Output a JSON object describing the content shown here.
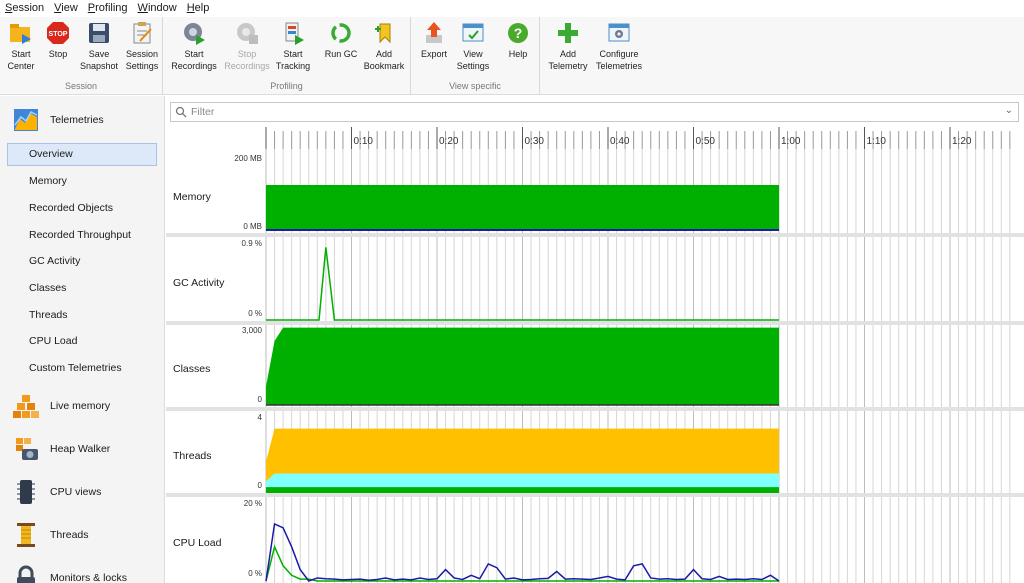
{
  "menu": [
    {
      "mnemonic": "S",
      "rest": "ession"
    },
    {
      "mnemonic": "V",
      "rest": "iew"
    },
    {
      "mnemonic": "P",
      "rest": "rofiling"
    },
    {
      "mnemonic": "W",
      "rest": "indow"
    },
    {
      "mnemonic": "H",
      "rest": "elp"
    }
  ],
  "toolbar": {
    "groups": {
      "session": "Session",
      "profiling": "Profiling",
      "view_specific": "View specific"
    },
    "buttons": {
      "start_center": [
        "Start",
        "Center"
      ],
      "stop": [
        "Stop"
      ],
      "save_snapshot": [
        "Save",
        "Snapshot"
      ],
      "session_settings": [
        "Session",
        "Settings"
      ],
      "start_recordings": [
        "Start",
        "Recordings"
      ],
      "stop_recordings": [
        "Stop",
        "Recordings"
      ],
      "start_tracking": [
        "Start",
        "Tracking"
      ],
      "run_gc": [
        "Run GC"
      ],
      "add_bookmark": [
        "Add",
        "Bookmark"
      ],
      "export": [
        "Export"
      ],
      "view_settings": [
        "View",
        "Settings"
      ],
      "help": [
        "Help"
      ],
      "add_telemetry": [
        "Add",
        "Telemetry"
      ],
      "configure_telemetries": [
        "Configure",
        "Telemetries"
      ]
    },
    "icons": {
      "start_center": "folder-play-icon",
      "stop": "stop-sign-icon",
      "save_snapshot": "floppy-disk-icon",
      "session_settings": "clipboard-icon",
      "start_recordings": "gear-record-icon",
      "run_gc": "recycle-icon",
      "add_bookmark": "bookmark-icon",
      "export": "export-arrow-icon",
      "view_settings": "view-settings-icon",
      "help": "help-icon",
      "add_telemetry": "plus-icon",
      "configure_telemetries": "configure-icon"
    }
  },
  "sidebar": {
    "telemetries": "Telemetries",
    "items": [
      "Overview",
      "Memory",
      "Recorded Objects",
      "Recorded Throughput",
      "GC Activity",
      "Classes",
      "Threads",
      "CPU Load",
      "Custom Telemetries"
    ],
    "active_index": 0,
    "sections": [
      "Live memory",
      "Heap Walker",
      "CPU views",
      "Threads",
      "Monitors & locks"
    ]
  },
  "filter": {
    "placeholder": "Filter"
  },
  "timeline": {
    "ticks": [
      "0:10",
      "0:20",
      "0:30",
      "0:40",
      "0:50",
      "1:00",
      "1:10",
      "1:20"
    ]
  },
  "charts": {
    "memory": {
      "label": "Memory",
      "top": "200 MB",
      "bottom": "0 MB"
    },
    "gc": {
      "label": "GC Activity",
      "top": "0.9 %",
      "bottom": "0 %"
    },
    "classes": {
      "label": "Classes",
      "top": "3,000",
      "bottom": "0"
    },
    "threads": {
      "label": "Threads",
      "top": "4",
      "bottom": "0"
    },
    "cpu": {
      "label": "CPU Load",
      "top": "20 %",
      "bottom": "0 %"
    }
  },
  "colors": {
    "green": "#00b000",
    "blue": "#1a1aa8",
    "yellow": "#ffc000",
    "cyan": "#80ffff",
    "accent": "#dde9f8"
  },
  "chart_data": [
    {
      "type": "area",
      "title": "Memory",
      "x_unit": "seconds",
      "xlim": [
        0,
        87
      ],
      "ylim": [
        0,
        200
      ],
      "ylabel": "MB",
      "series": [
        {
          "x": [
            0,
            3,
            6,
            9,
            12,
            60
          ],
          "values": [
            0,
            6,
            6,
            6,
            0,
            0
          ]
        },
        {
          "x": [
            0,
            60
          ],
          "values": [
            200,
            200
          ]
        }
      ]
    },
    {
      "type": "line",
      "title": "GC Activity",
      "x_unit": "seconds",
      "xlim": [
        0,
        87
      ],
      "ylim": [
        0,
        0.9
      ],
      "series": [
        {
          "x": [
            0,
            6.2,
            7.0,
            8.0,
            60
          ],
          "values": [
            0,
            0,
            0.85,
            0,
            0
          ]
        }
      ]
    },
    {
      "type": "area",
      "title": "Classes",
      "x_unit": "seconds",
      "xlim": [
        0,
        87
      ],
      "ylim": [
        0,
        3000
      ],
      "series": [
        {
          "x": [
            0,
            1,
            2,
            60
          ],
          "values": [
            700,
            2400,
            2900,
            2900
          ]
        }
      ]
    },
    {
      "type": "area",
      "title": "Threads",
      "x_unit": "seconds",
      "xlim": [
        0,
        87
      ],
      "ylim": [
        0,
        4
      ],
      "series": [
        {
          "x": [
            0,
            1,
            2,
            60
          ],
          "values": [
            0.3,
            0.3,
            0.3,
            0.3
          ]
        },
        {
          "x": [
            0,
            1,
            60
          ],
          "values": [
            0.6,
            1.0,
            1.0
          ]
        },
        {
          "x": [
            0,
            1,
            60
          ],
          "values": [
            1.6,
            3.3,
            3.3
          ]
        }
      ]
    },
    {
      "type": "line",
      "title": "CPU Load",
      "x_unit": "seconds",
      "xlim": [
        0,
        87
      ],
      "ylim": [
        0,
        20
      ],
      "series": [
        {
          "x": [
            0,
            1,
            2,
            3,
            4,
            5,
            6,
            7,
            8,
            9,
            10,
            11,
            12,
            13,
            14,
            15,
            16,
            17,
            18,
            19,
            20,
            21,
            22,
            23,
            24,
            25,
            26,
            27,
            28,
            29,
            30,
            31,
            32,
            33,
            34,
            35,
            36,
            37,
            38,
            39,
            40,
            41,
            42,
            43,
            44,
            45,
            46,
            47,
            48,
            49,
            50,
            51,
            52,
            53,
            54,
            55,
            56,
            57,
            58,
            59,
            60
          ],
          "values": [
            0,
            15,
            14,
            9,
            3,
            0,
            0.8,
            0.6,
            0.5,
            0.3,
            0.4,
            0.5,
            0.2,
            0.4,
            0.8,
            0.3,
            0.5,
            0.3,
            0.8,
            0.4,
            0.6,
            3.0,
            0.8,
            0.4,
            1.5,
            0.6,
            4.5,
            3.5,
            0.5,
            0.8,
            0.3,
            0.4,
            0.6,
            0.7,
            2.5,
            0.5,
            0.6,
            0.5,
            0.4,
            0.8,
            1.2,
            0.5,
            0.3,
            4.0,
            4.5,
            0.8,
            0.5,
            0.6,
            0.4,
            0.5,
            3.0,
            0.6,
            0.4,
            1.2,
            0.4,
            0.5,
            0.4,
            0.6,
            0.4,
            1.5,
            0
          ]
        },
        {
          "x": [
            0,
            1,
            2,
            3,
            4,
            5,
            6,
            60
          ],
          "values": [
            0,
            9,
            4,
            1.5,
            0.5,
            0.5,
            0,
            0
          ]
        }
      ]
    }
  ]
}
